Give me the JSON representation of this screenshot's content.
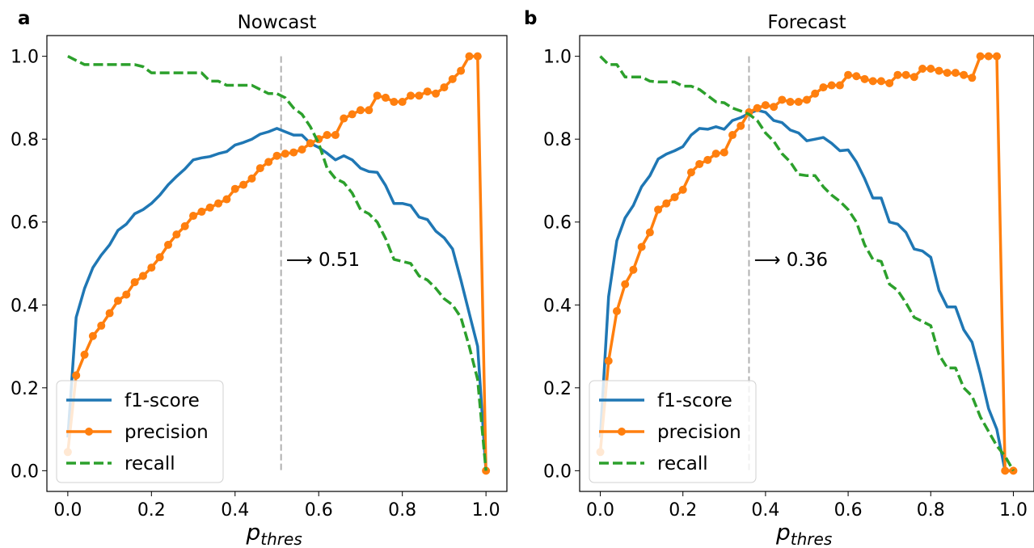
{
  "colors": {
    "f1": "#1f77b4",
    "precision": "#ff7f0e",
    "recall": "#2ca02c",
    "threshold_line": "#b0b0b0"
  },
  "chart_data": [
    {
      "type": "line",
      "panel_letter": "a",
      "title": "Nowcast",
      "xlabel_main": "p",
      "xlabel_sub": "thres",
      "xlim": [
        -0.05,
        1.05
      ],
      "ylim": [
        -0.05,
        1.05
      ],
      "xticks": [
        "0.0",
        "0.2",
        "0.4",
        "0.6",
        "0.8",
        "1.0"
      ],
      "yticks": [
        "0.0",
        "0.2",
        "0.4",
        "0.6",
        "0.8",
        "1.0"
      ],
      "threshold": 0.51,
      "annotation": "⟶ 0.51",
      "legend": {
        "position": "lower-left",
        "entries": [
          "f1-score",
          "precision",
          "recall"
        ]
      },
      "series": [
        {
          "name": "f1-score",
          "style": "solid",
          "x": [
            0.0,
            0.02,
            0.04,
            0.06,
            0.08,
            0.1,
            0.12,
            0.14,
            0.16,
            0.18,
            0.2,
            0.22,
            0.24,
            0.26,
            0.28,
            0.3,
            0.32,
            0.34,
            0.36,
            0.38,
            0.4,
            0.42,
            0.44,
            0.46,
            0.48,
            0.5,
            0.52,
            0.54,
            0.56,
            0.58,
            0.6,
            0.62,
            0.64,
            0.66,
            0.68,
            0.7,
            0.72,
            0.74,
            0.76,
            0.78,
            0.8,
            0.82,
            0.84,
            0.86,
            0.88,
            0.9,
            0.92,
            0.94,
            0.96,
            0.98,
            1.0
          ],
          "y": [
            0.08,
            0.37,
            0.44,
            0.49,
            0.52,
            0.545,
            0.58,
            0.595,
            0.62,
            0.63,
            0.645,
            0.665,
            0.69,
            0.71,
            0.728,
            0.75,
            0.755,
            0.758,
            0.765,
            0.77,
            0.786,
            0.792,
            0.8,
            0.812,
            0.818,
            0.826,
            0.818,
            0.81,
            0.81,
            0.79,
            0.78,
            0.766,
            0.75,
            0.76,
            0.75,
            0.73,
            0.722,
            0.72,
            0.688,
            0.645,
            0.645,
            0.64,
            0.612,
            0.606,
            0.578,
            0.562,
            0.535,
            0.46,
            0.38,
            0.3,
            0.0
          ]
        },
        {
          "name": "precision",
          "style": "solid-markers",
          "x": [
            0.0,
            0.02,
            0.04,
            0.06,
            0.08,
            0.1,
            0.12,
            0.14,
            0.16,
            0.18,
            0.2,
            0.22,
            0.24,
            0.26,
            0.28,
            0.3,
            0.32,
            0.34,
            0.36,
            0.38,
            0.4,
            0.42,
            0.44,
            0.46,
            0.48,
            0.5,
            0.52,
            0.54,
            0.56,
            0.58,
            0.6,
            0.62,
            0.64,
            0.66,
            0.68,
            0.7,
            0.72,
            0.74,
            0.76,
            0.78,
            0.8,
            0.82,
            0.84,
            0.86,
            0.88,
            0.9,
            0.92,
            0.94,
            0.96,
            0.98,
            1.0
          ],
          "y": [
            0.045,
            0.23,
            0.28,
            0.325,
            0.35,
            0.38,
            0.41,
            0.425,
            0.455,
            0.47,
            0.49,
            0.515,
            0.545,
            0.57,
            0.59,
            0.615,
            0.625,
            0.635,
            0.645,
            0.655,
            0.68,
            0.69,
            0.705,
            0.73,
            0.745,
            0.76,
            0.765,
            0.768,
            0.775,
            0.79,
            0.8,
            0.81,
            0.81,
            0.85,
            0.86,
            0.87,
            0.87,
            0.905,
            0.9,
            0.89,
            0.89,
            0.905,
            0.905,
            0.915,
            0.91,
            0.925,
            0.945,
            0.965,
            1.0,
            1.0,
            0.0
          ]
        },
        {
          "name": "recall",
          "style": "dashed",
          "x": [
            0.0,
            0.02,
            0.04,
            0.06,
            0.08,
            0.1,
            0.12,
            0.14,
            0.16,
            0.18,
            0.2,
            0.22,
            0.24,
            0.26,
            0.28,
            0.3,
            0.32,
            0.34,
            0.36,
            0.38,
            0.4,
            0.42,
            0.44,
            0.46,
            0.48,
            0.5,
            0.52,
            0.54,
            0.56,
            0.58,
            0.6,
            0.62,
            0.64,
            0.66,
            0.68,
            0.7,
            0.72,
            0.74,
            0.76,
            0.78,
            0.8,
            0.82,
            0.84,
            0.86,
            0.88,
            0.9,
            0.92,
            0.94,
            0.96,
            0.98,
            1.0
          ],
          "y": [
            1.0,
            0.99,
            0.98,
            0.98,
            0.98,
            0.98,
            0.98,
            0.98,
            0.98,
            0.975,
            0.96,
            0.96,
            0.96,
            0.96,
            0.96,
            0.96,
            0.96,
            0.94,
            0.94,
            0.93,
            0.93,
            0.93,
            0.93,
            0.92,
            0.91,
            0.91,
            0.9,
            0.875,
            0.86,
            0.83,
            0.79,
            0.73,
            0.705,
            0.695,
            0.67,
            0.63,
            0.62,
            0.6,
            0.56,
            0.51,
            0.505,
            0.5,
            0.47,
            0.46,
            0.44,
            0.415,
            0.4,
            0.37,
            0.3,
            0.22,
            0.0
          ]
        }
      ]
    },
    {
      "type": "line",
      "panel_letter": "b",
      "title": "Forecast",
      "xlabel_main": "p",
      "xlabel_sub": "thres",
      "xlim": [
        -0.05,
        1.05
      ],
      "ylim": [
        -0.05,
        1.05
      ],
      "xticks": [
        "0.0",
        "0.2",
        "0.4",
        "0.6",
        "0.8",
        "1.0"
      ],
      "yticks": [
        "0.0",
        "0.2",
        "0.4",
        "0.6",
        "0.8",
        "1.0"
      ],
      "threshold": 0.36,
      "annotation": "⟶ 0.36",
      "legend": {
        "position": "lower-left",
        "entries": [
          "f1-score",
          "precision",
          "recall"
        ]
      },
      "series": [
        {
          "name": "f1-score",
          "style": "solid",
          "x": [
            0.0,
            0.02,
            0.04,
            0.06,
            0.08,
            0.1,
            0.12,
            0.14,
            0.16,
            0.18,
            0.2,
            0.22,
            0.24,
            0.26,
            0.28,
            0.3,
            0.32,
            0.34,
            0.36,
            0.38,
            0.4,
            0.42,
            0.44,
            0.46,
            0.48,
            0.5,
            0.52,
            0.54,
            0.56,
            0.58,
            0.6,
            0.62,
            0.64,
            0.66,
            0.68,
            0.7,
            0.72,
            0.74,
            0.76,
            0.78,
            0.8,
            0.82,
            0.84,
            0.86,
            0.88,
            0.9,
            0.92,
            0.94,
            0.96,
            0.98,
            1.0
          ],
          "y": [
            0.08,
            0.42,
            0.555,
            0.61,
            0.64,
            0.685,
            0.712,
            0.752,
            0.764,
            0.772,
            0.782,
            0.81,
            0.826,
            0.824,
            0.83,
            0.824,
            0.845,
            0.852,
            0.862,
            0.87,
            0.865,
            0.845,
            0.84,
            0.822,
            0.815,
            0.796,
            0.8,
            0.804,
            0.79,
            0.772,
            0.774,
            0.745,
            0.705,
            0.658,
            0.658,
            0.6,
            0.595,
            0.575,
            0.535,
            0.53,
            0.515,
            0.435,
            0.395,
            0.395,
            0.34,
            0.31,
            0.235,
            0.15,
            0.1,
            0.0,
            0.0
          ]
        },
        {
          "name": "precision",
          "style": "solid-markers",
          "x": [
            0.0,
            0.02,
            0.04,
            0.06,
            0.08,
            0.1,
            0.12,
            0.14,
            0.16,
            0.18,
            0.2,
            0.22,
            0.24,
            0.26,
            0.28,
            0.3,
            0.32,
            0.34,
            0.36,
            0.38,
            0.4,
            0.42,
            0.44,
            0.46,
            0.48,
            0.5,
            0.52,
            0.54,
            0.56,
            0.58,
            0.6,
            0.62,
            0.64,
            0.66,
            0.68,
            0.7,
            0.72,
            0.74,
            0.76,
            0.78,
            0.8,
            0.82,
            0.84,
            0.86,
            0.88,
            0.9,
            0.92,
            0.94,
            0.96,
            0.98,
            1.0
          ],
          "y": [
            0.045,
            0.265,
            0.385,
            0.45,
            0.485,
            0.54,
            0.575,
            0.63,
            0.645,
            0.66,
            0.678,
            0.72,
            0.74,
            0.75,
            0.765,
            0.768,
            0.81,
            0.832,
            0.865,
            0.875,
            0.882,
            0.878,
            0.895,
            0.89,
            0.89,
            0.895,
            0.91,
            0.925,
            0.93,
            0.93,
            0.955,
            0.952,
            0.945,
            0.94,
            0.94,
            0.935,
            0.955,
            0.955,
            0.95,
            0.97,
            0.97,
            0.965,
            0.96,
            0.96,
            0.955,
            0.948,
            1.0,
            1.0,
            1.0,
            0.0,
            0.0
          ]
        },
        {
          "name": "recall",
          "style": "dashed",
          "x": [
            0.0,
            0.02,
            0.04,
            0.06,
            0.08,
            0.1,
            0.12,
            0.14,
            0.16,
            0.18,
            0.2,
            0.22,
            0.24,
            0.26,
            0.28,
            0.3,
            0.32,
            0.34,
            0.36,
            0.38,
            0.4,
            0.42,
            0.44,
            0.46,
            0.48,
            0.5,
            0.52,
            0.54,
            0.56,
            0.58,
            0.6,
            0.62,
            0.64,
            0.66,
            0.68,
            0.7,
            0.72,
            0.74,
            0.76,
            0.78,
            0.8,
            0.82,
            0.84,
            0.86,
            0.88,
            0.9,
            0.92,
            0.94,
            0.96,
            0.98,
            1.0
          ],
          "y": [
            1.0,
            0.98,
            0.98,
            0.95,
            0.95,
            0.95,
            0.94,
            0.938,
            0.938,
            0.938,
            0.928,
            0.928,
            0.92,
            0.905,
            0.89,
            0.888,
            0.875,
            0.868,
            0.86,
            0.845,
            0.815,
            0.795,
            0.765,
            0.745,
            0.715,
            0.712,
            0.712,
            0.685,
            0.665,
            0.65,
            0.63,
            0.6,
            0.545,
            0.51,
            0.505,
            0.45,
            0.435,
            0.405,
            0.37,
            0.36,
            0.35,
            0.28,
            0.248,
            0.248,
            0.2,
            0.18,
            0.13,
            0.095,
            0.06,
            0.035,
            0.0
          ]
        }
      ]
    }
  ]
}
